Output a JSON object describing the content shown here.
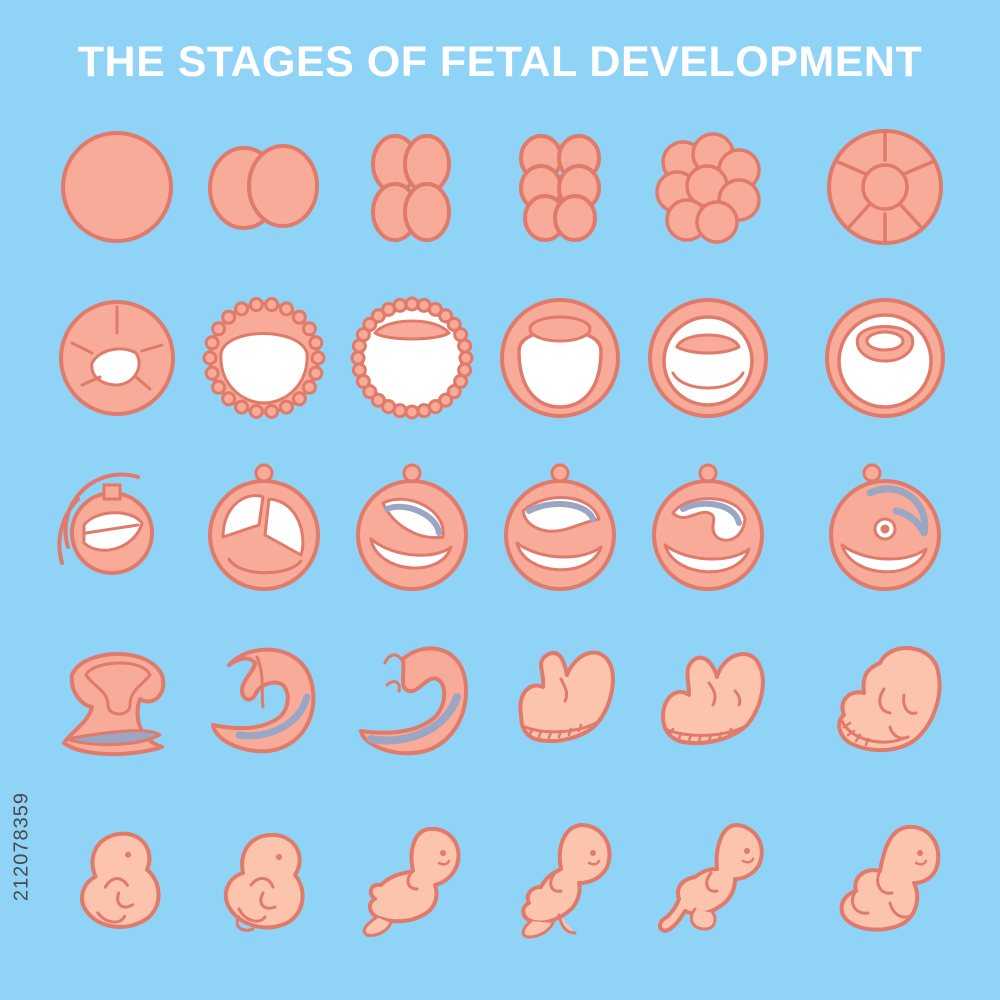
{
  "title": "THE STAGES OF FETAL DEVELOPMENT",
  "side_id": "212078359",
  "colors": {
    "background": "#8fd3f7",
    "stroke": "#e07a6b",
    "fill": "#f7ab98",
    "skin": "#fcc4ad",
    "cavity": "#ffffff",
    "membrane": "#9aa6c4",
    "title": "#ffffff"
  },
  "stages": [
    {
      "kind": "zygote"
    },
    {
      "kind": "two-cell"
    },
    {
      "kind": "four-cell"
    },
    {
      "kind": "eight-cell"
    },
    {
      "kind": "morula-early"
    },
    {
      "kind": "morula"
    },
    {
      "kind": "early-blastocyst"
    },
    {
      "kind": "blastocyst"
    },
    {
      "kind": "late-blastocyst"
    },
    {
      "kind": "cavity-stage-1"
    },
    {
      "kind": "cavity-stage-2"
    },
    {
      "kind": "cavity-stage-3"
    },
    {
      "kind": "implanting-sac"
    },
    {
      "kind": "bilaminar-disc"
    },
    {
      "kind": "amniotic-cavity"
    },
    {
      "kind": "folding-disc"
    },
    {
      "kind": "neural-tube"
    },
    {
      "kind": "embryonic-folding"
    },
    {
      "kind": "gastrula"
    },
    {
      "kind": "neurula"
    },
    {
      "kind": "curved-embryo"
    },
    {
      "kind": "embryo-4-weeks"
    },
    {
      "kind": "embryo-5-weeks"
    },
    {
      "kind": "embryo-6-weeks"
    },
    {
      "kind": "embryo-7-weeks"
    },
    {
      "kind": "embryo-8-weeks"
    },
    {
      "kind": "fetus-10-weeks"
    },
    {
      "kind": "fetus-12-weeks"
    },
    {
      "kind": "fetus-16-weeks"
    },
    {
      "kind": "fetus-20-weeks"
    }
  ]
}
